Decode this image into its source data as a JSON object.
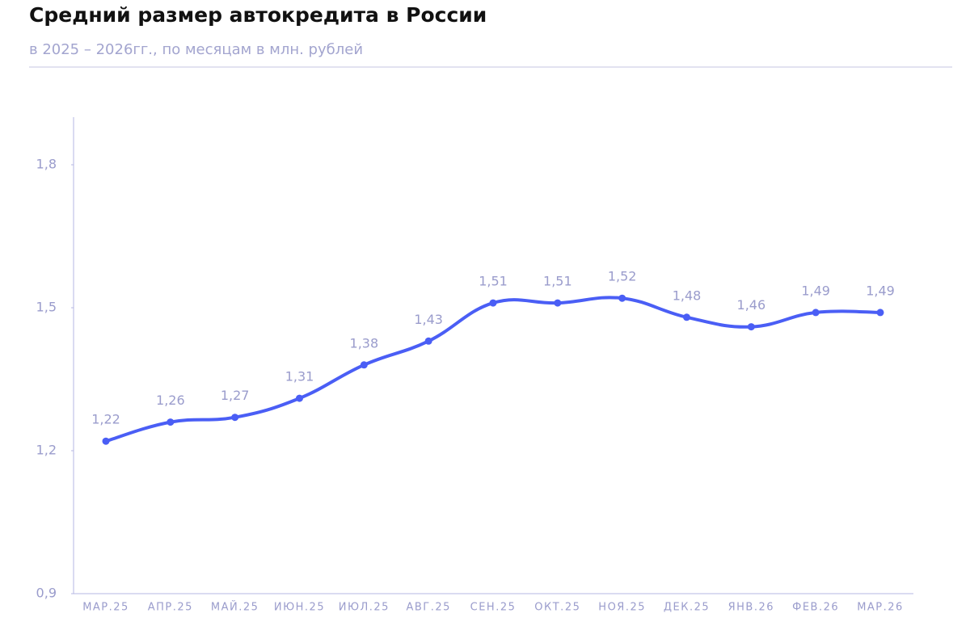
{
  "chart_data": {
    "type": "line",
    "title": "Средний размер автокредита в России",
    "subtitle": "в 2025 – 2026гг., по месяцам в млн. рублей",
    "categories": [
      "МАР.25",
      "АПР.25",
      "МАЙ.25",
      "ИЮН.25",
      "ИЮЛ.25",
      "АВГ.25",
      "СЕН.25",
      "ОКТ.25",
      "НОЯ.25",
      "ДЕК.25",
      "ЯНВ.26",
      "ФЕВ.26",
      "МАР.26"
    ],
    "values": [
      1.22,
      1.26,
      1.27,
      1.31,
      1.38,
      1.43,
      1.51,
      1.51,
      1.52,
      1.48,
      1.46,
      1.49,
      1.49
    ],
    "value_labels": [
      "1,22",
      "1,26",
      "1,27",
      "1,31",
      "1,38",
      "1,43",
      "1,51",
      "1,51",
      "1,52",
      "1,48",
      "1,46",
      "1,49",
      "1,49"
    ],
    "color": "#4a5ef5",
    "ylim": [
      0.9,
      1.9
    ],
    "yticks": [
      {
        "value": 0.9,
        "label": "0,9"
      },
      {
        "value": 1.2,
        "label": "1,2"
      },
      {
        "value": 1.5,
        "label": "1,5"
      },
      {
        "value": 1.8,
        "label": "1,8"
      }
    ],
    "grid": false
  }
}
